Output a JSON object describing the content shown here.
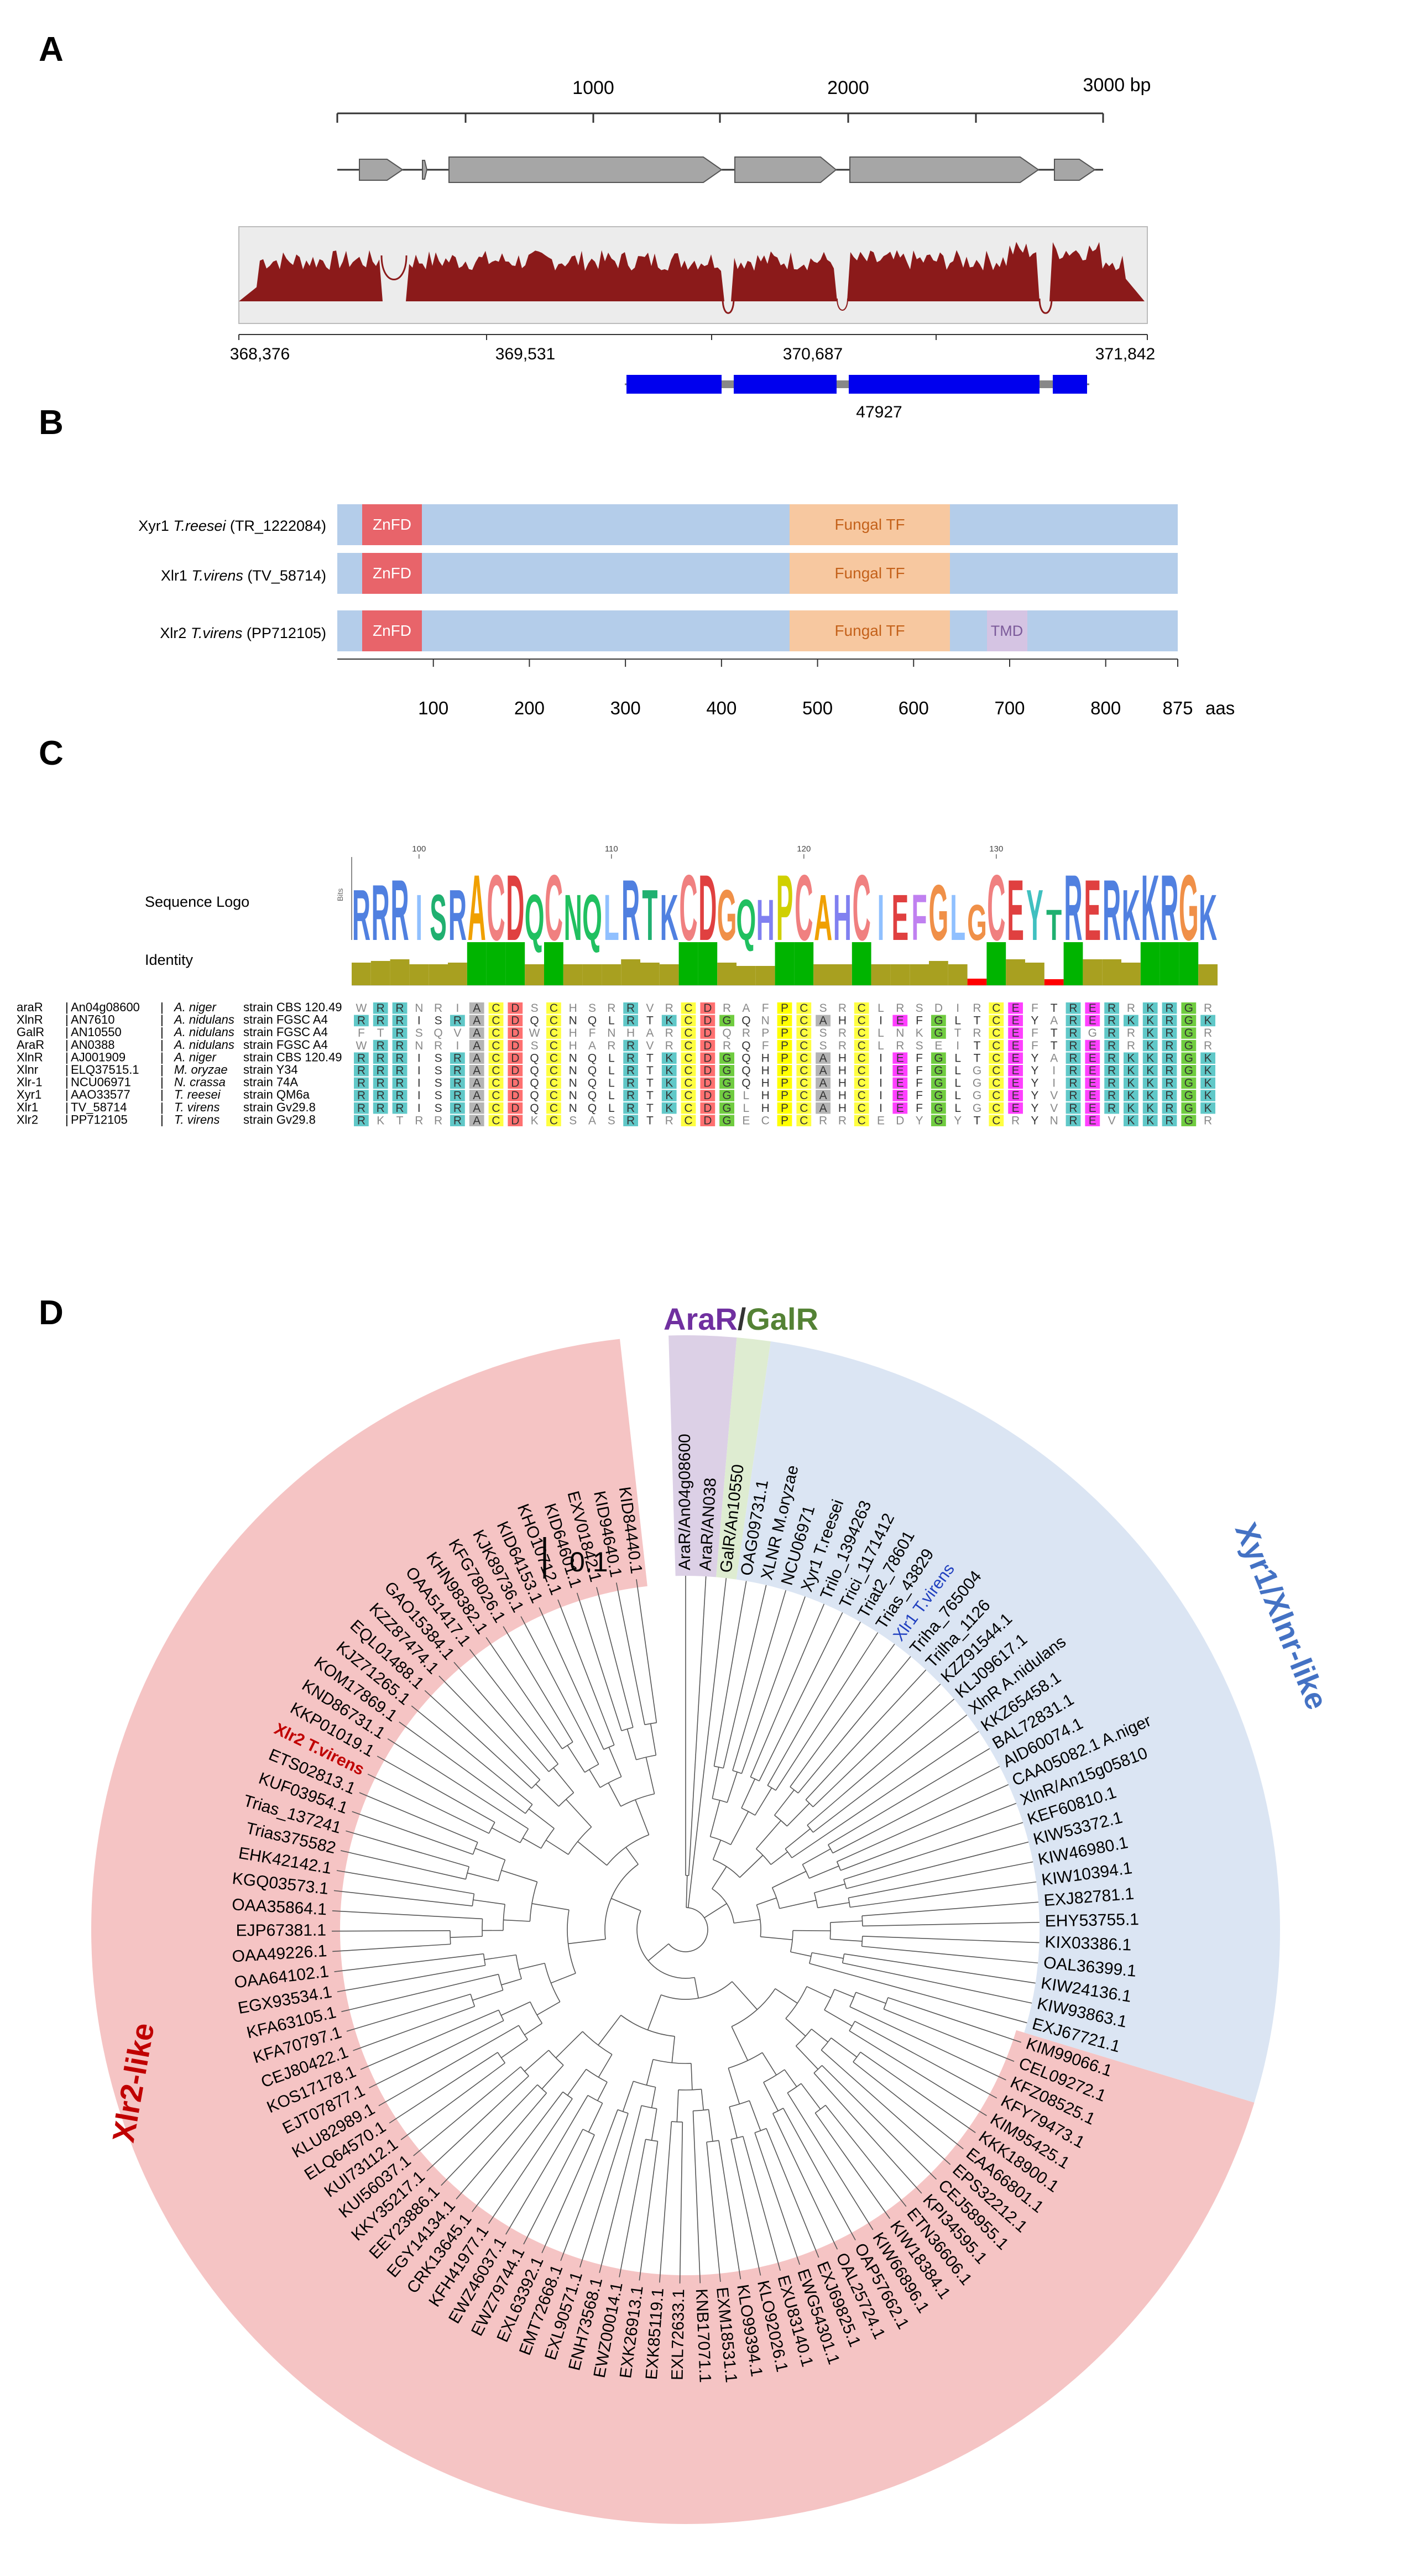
{
  "figure": {
    "panel_labels": [
      "A",
      "B",
      "C",
      "D"
    ]
  },
  "panel_a": {
    "scale_labels": [
      "1000",
      "2000",
      "3000 bp"
    ],
    "coverage_axis": [
      "368,376",
      "369,531",
      "370,687",
      "371,842"
    ],
    "gene_id": "47927",
    "colors": {
      "coverage": "#8b1a1a",
      "exon": "#0000ee",
      "arrow": "#a6a6a6"
    }
  },
  "panel_b": {
    "proteins": [
      {
        "name": "Xyr1",
        "species": "T.reesei",
        "accession": "(TR_1222084)",
        "tmd": false
      },
      {
        "name": "Xlr1",
        "species": "T.virens",
        "accession": "(TV_58714)",
        "tmd": false
      },
      {
        "name": "Xlr2",
        "species": "T.virens",
        "accession": "(PP712105)",
        "tmd": true
      }
    ],
    "domains": {
      "znfd": "ZnFD",
      "fungal_tf": "Fungal TF",
      "tmd": "TMD"
    },
    "axis_ticks": [
      "100",
      "200",
      "300",
      "400",
      "500",
      "600",
      "700",
      "800",
      "875"
    ],
    "axis_unit": "aas",
    "colors": {
      "bar": "#b4cdea",
      "znfd": "#e8646a",
      "fungal_tf": "#f7c8a0",
      "tmd": "#d5c4e3"
    }
  },
  "panel_c": {
    "sequence_logo_label": "Sequence Logo",
    "identity_label": "Identity",
    "logo_letters": "RRRISRACDQCNQLRTKCDGQHPCAHCIEFGLGCEYTRERKKRGK",
    "position_ticks": [
      "100",
      "110",
      "120",
      "130"
    ],
    "rows": [
      {
        "protein": "araR",
        "accession": "An04g08600",
        "species": "A. niger",
        "strain": "strain CBS 120.49",
        "seq": "WRRNRIACDSCHSRRVRCDRAFPCSRCLRSDIRCEFTRERRKRGR"
      },
      {
        "protein": "XlnR",
        "accession": "AN7610",
        "species": "A. nidulans",
        "strain": "strain FGSC A4",
        "seq": "RRRISRACDQCNQLRTKCDGQNPCAHCIEFGLTCEYARERKKRGK"
      },
      {
        "protein": "GalR",
        "accession": "AN10550",
        "species": "A. nidulans",
        "strain": "strain FGSC A4",
        "seq": "FTRSQVACDWCHFNHARCDQRPPCSRCLNKGTRCEFTRGRRKRGR"
      },
      {
        "protein": "AraR",
        "accession": "AN0388",
        "species": "A. nidulans",
        "strain": "strain FGSC A4",
        "seq": "WRRNRIACDSCHARRVRCDRQFPCSRCLRSEITCEFTRERRKRGR"
      },
      {
        "protein": "XlnR",
        "accession": "AJ001909",
        "species": "A. niger",
        "strain": "strain CBS 120.49",
        "seq": "RRRISRACDQCNQLRTKCDGQHPCAHCIEFGLTCEYARERKKRGK"
      },
      {
        "protein": "Xlnr",
        "accession": "ELQ37515.1",
        "species": "M. oryzae",
        "strain": "strain Y34",
        "seq": "RRRISRACDQCNQLRTKCDGQHPCAHCIEFGLGCEYIRERKKRGK"
      },
      {
        "protein": "Xlr-1",
        "accession": "NCU06971",
        "species": "N. crassa",
        "strain": "strain 74A",
        "seq": "RRRISRACDQCNQLRTKCDGQHPCAHCIEFGLGCEYIRERKKRGK"
      },
      {
        "protein": "Xyr1",
        "accession": "AAO33577",
        "species": "T. reesei",
        "strain": "strain QM6a",
        "seq": "RRRISRACDQCNQLRTKCDGLHPCAHCIEFGLGCEYVRERKKRGK"
      },
      {
        "protein": "Xlr1",
        "accession": "TV_58714",
        "species": "T. virens",
        "strain": "strain Gv29.8",
        "seq": "RRRISRACDQCNQLRTKCDGLHPCAHCIEFGLGCEYVRERKKRGK"
      },
      {
        "protein": "Xlr2",
        "accession": "PP712105",
        "species": "T. virens",
        "strain": "strain Gv29.8",
        "seq": "RKTRRRACDKCSASRTRCDGECPCRRCEDYGYTCRYNREVKKRGR"
      }
    ],
    "colors": {
      "identity_high": "#00b400",
      "identity_mid": "#a8a020",
      "identity_low": "#ff0000"
    }
  },
  "panel_d": {
    "scale_bar": "0.1",
    "clade_labels": {
      "arar": "AraR",
      "slash": "/",
      "galr": "GalR",
      "xyr1": "Xyr1/Xlnr-like",
      "xlr2": "Xlr2-like"
    },
    "colors": {
      "arar": "#7030a0",
      "galr": "#548235",
      "xyr1": "#4472c4",
      "xlr2": "#c00000",
      "sector_xyr1": "#dbe5f3",
      "sector_xlr2": "#f5c4c4",
      "sector_arar": "#dcd0e6",
      "sector_galr": "#deecd1"
    },
    "leaves": [
      "AraR/An04g08600",
      "AraR/AN038",
      "GalR/An10550",
      "OAG09731.1",
      "XLNR M.oryzae",
      "NCU06971",
      "Xyr1 T.reesei",
      "Trilo_1394263",
      "Trici_1171412",
      "Triat2_78601",
      "Trias_43829",
      "Xlr1 T.virens",
      "Triha_765004",
      "Trilha_1126",
      "KZZ91544.1",
      "KLJ09617.1",
      "XlnR A.nidulans",
      "KKZ65458.1",
      "BAL72831.1",
      "AID60074.1",
      "CAA05082.1 A.niger",
      "XlnR/An15g05810",
      "KEF60810.1",
      "KIW53372.1",
      "KIW46980.1",
      "KIW10394.1",
      "EXJ82781.1",
      "EHY53755.1",
      "KIX03386.1",
      "OAL36399.1",
      "KIW24136.1",
      "KIW93863.1",
      "EXJ67721.1",
      "KIM99066.1",
      "CEL09272.1",
      "KFZ08525.1",
      "KFY79473.1",
      "KIM95425.1",
      "KKK18900.1",
      "EAA66801.1",
      "EPS32212.1",
      "CEJ58955.1",
      "KPI34595.1",
      "ETN36606.1",
      "KIW18384.1",
      "KIW66896.1",
      "OAP57662.1",
      "OAL25724.1",
      "EXJ69825.1",
      "EWG54301.1",
      "EXU83140.1",
      "KLO92026.1",
      "KLO99394.1",
      "EXM18531.1",
      "KNB17071.1",
      "EXL72633.1",
      "EXK85119.1",
      "EXK26913.1",
      "EWZ00014.1",
      "ENH73568.1",
      "EXL90571.1",
      "EMT72668.1",
      "EXL63392.1",
      "EWZ79744.1",
      "EWZ46037.1",
      "KFH41977.1",
      "CRK13645.1",
      "EGY14134.1",
      "EEY23886.1",
      "KKY35217.1",
      "KUI56037.1",
      "KUI73112.1",
      "ELQ64570.1",
      "KLU82989.1",
      "EJT07877.1",
      "KOS17178.1",
      "CEJ80422.1",
      "KFA70797.1",
      "KFA63105.1",
      "EGX93534.1",
      "OAA64102.1",
      "OAA49226.1",
      "EJP67381.1",
      "OAA35864.1",
      "KGQ03573.1",
      "EHK42142.1",
      "Trias375582",
      "Trias_137241",
      "KUF03954.1",
      "ETS02813.1",
      "Xlr2 T.virens",
      "KKP01019.1",
      "KND86731.1",
      "KOM17869.1",
      "KJZ71265.1",
      "EQL01488.1",
      "KZZ87474.1",
      "GAO15384.1",
      "OAA51417.1",
      "KHN98382.1",
      "KFG78026.1",
      "KJK89736.1",
      "KID64153.1",
      "KHO10712.1",
      "KID64601.1",
      "EXV01842.1",
      "KID94640.1",
      "KID84440.1"
    ]
  }
}
